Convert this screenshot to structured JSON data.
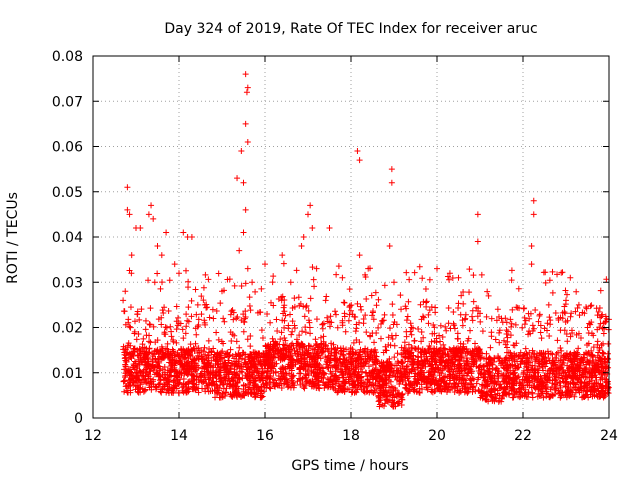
{
  "chart_data": {
    "type": "scatter",
    "title": "Day 324 of 2019, Rate Of TEC Index for receiver aruc",
    "xlabel": "GPS time / hours",
    "ylabel": "ROTI / TECUs",
    "xlim": [
      12,
      24
    ],
    "ylim": [
      0,
      0.08
    ],
    "x_ticks": [
      12,
      14,
      16,
      18,
      20,
      22,
      24
    ],
    "y_ticks": [
      0,
      0.01,
      0.02,
      0.03,
      0.04,
      0.05,
      0.06,
      0.07,
      0.08
    ],
    "x_tick_labels": [
      "12",
      "14",
      "16",
      "18",
      "20",
      "22",
      "24"
    ],
    "y_tick_labels": [
      "0",
      "0.01",
      "0.02",
      "0.03",
      "0.04",
      "0.05",
      "0.06",
      "0.07",
      "0.08"
    ],
    "grid": true,
    "marker": "+",
    "series": [
      {
        "name": "ROTI",
        "color": "#ff0000",
        "note": "dense cloud of points mostly between 0.003 and 0.03 TECU from ~12.7 to 24 h; representative points listed",
        "points": [
          [
            12.8,
            0.051
          ],
          [
            12.8,
            0.046
          ],
          [
            12.85,
            0.045
          ],
          [
            12.75,
            0.028
          ],
          [
            12.7,
            0.026
          ],
          [
            12.9,
            0.036
          ],
          [
            13.0,
            0.042
          ],
          [
            13.1,
            0.042
          ],
          [
            13.3,
            0.045
          ],
          [
            13.35,
            0.047
          ],
          [
            13.4,
            0.044
          ],
          [
            13.5,
            0.038
          ],
          [
            13.6,
            0.036
          ],
          [
            13.7,
            0.041
          ],
          [
            13.9,
            0.034
          ],
          [
            14.1,
            0.041
          ],
          [
            14.2,
            0.04
          ],
          [
            14.3,
            0.04
          ],
          [
            14.0,
            0.032
          ],
          [
            14.6,
            0.025
          ],
          [
            14.8,
            0.022
          ],
          [
            15.0,
            0.028
          ],
          [
            15.55,
            0.076
          ],
          [
            15.6,
            0.073
          ],
          [
            15.58,
            0.072
          ],
          [
            15.55,
            0.065
          ],
          [
            15.6,
            0.061
          ],
          [
            15.45,
            0.059
          ],
          [
            15.35,
            0.053
          ],
          [
            15.5,
            0.052
          ],
          [
            15.55,
            0.046
          ],
          [
            15.5,
            0.041
          ],
          [
            15.4,
            0.037
          ],
          [
            15.6,
            0.033
          ],
          [
            15.7,
            0.03
          ],
          [
            16.0,
            0.034
          ],
          [
            16.4,
            0.036
          ],
          [
            16.6,
            0.03
          ],
          [
            16.85,
            0.038
          ],
          [
            16.9,
            0.04
          ],
          [
            17.0,
            0.045
          ],
          [
            17.05,
            0.047
          ],
          [
            17.1,
            0.042
          ],
          [
            17.2,
            0.033
          ],
          [
            17.5,
            0.042
          ],
          [
            17.8,
            0.031
          ],
          [
            18.15,
            0.059
          ],
          [
            18.2,
            0.057
          ],
          [
            18.2,
            0.036
          ],
          [
            18.4,
            0.033
          ],
          [
            18.95,
            0.055
          ],
          [
            18.95,
            0.052
          ],
          [
            18.9,
            0.038
          ],
          [
            19.0,
            0.03
          ],
          [
            20.0,
            0.033
          ],
          [
            20.3,
            0.032
          ],
          [
            20.5,
            0.031
          ],
          [
            20.95,
            0.045
          ],
          [
            20.95,
            0.039
          ],
          [
            21.2,
            0.027
          ],
          [
            21.5,
            0.022
          ],
          [
            22.25,
            0.048
          ],
          [
            22.25,
            0.045
          ],
          [
            22.2,
            0.038
          ],
          [
            22.2,
            0.034
          ],
          [
            22.6,
            0.025
          ],
          [
            23.1,
            0.031
          ],
          [
            23.0,
            0.026
          ],
          [
            23.3,
            0.025
          ],
          [
            23.5,
            0.02
          ],
          [
            23.9,
            0.013
          ]
        ]
      }
    ]
  }
}
